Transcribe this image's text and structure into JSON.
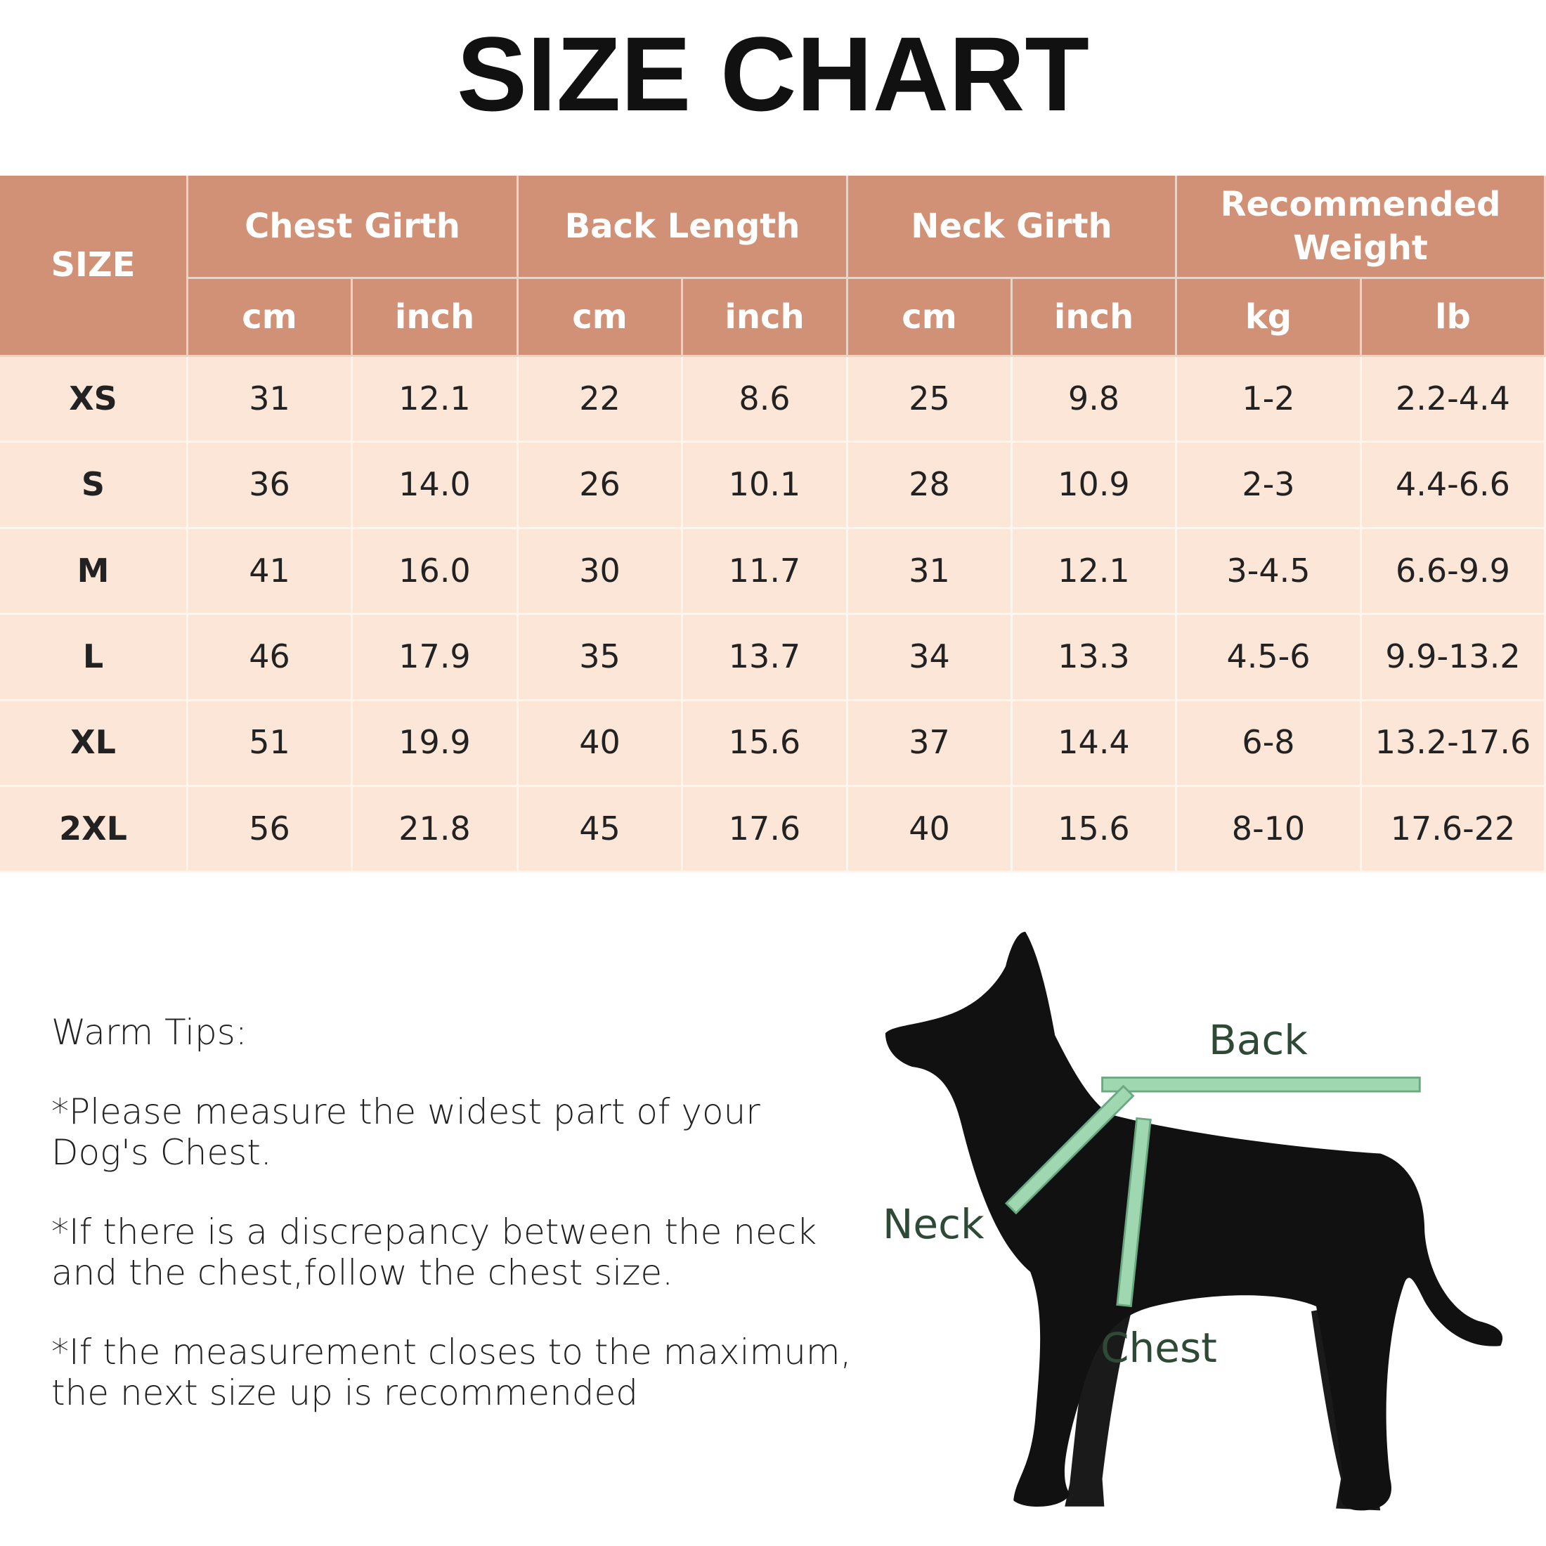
{
  "header": {
    "title": "SIZE CHART"
  },
  "table": {
    "size_header": "SIZE",
    "groups": [
      {
        "label": [
          "Chest Girth"
        ],
        "units": [
          "cm",
          "inch"
        ]
      },
      {
        "label": [
          "Back Length"
        ],
        "units": [
          "cm",
          "inch"
        ]
      },
      {
        "label": [
          "Neck Girth"
        ],
        "units": [
          "cm",
          "inch"
        ]
      },
      {
        "label": [
          "Recommended",
          "Weight"
        ],
        "units": [
          "kg",
          "lb"
        ]
      }
    ],
    "rows": [
      [
        "XS",
        "31",
        "12.1",
        "22",
        "8.6",
        "25",
        "9.8",
        "1-2",
        "2.2-4.4"
      ],
      [
        "S",
        "36",
        "14.0",
        "26",
        "10.1",
        "28",
        "10.9",
        "2-3",
        "4.4-6.6"
      ],
      [
        "M",
        "41",
        "16.0",
        "30",
        "11.7",
        "31",
        "12.1",
        "3-4.5",
        "6.6-9.9"
      ],
      [
        "L",
        "46",
        "17.9",
        "35",
        "13.7",
        "34",
        "13.3",
        "4.5-6",
        "9.9-13.2"
      ],
      [
        "XL",
        "51",
        "19.9",
        "40",
        "15.6",
        "37",
        "14.4",
        "6-8",
        "13.2-17.6"
      ],
      [
        "2XL",
        "56",
        "21.8",
        "45",
        "17.6",
        "40",
        "15.6",
        "8-10",
        "17.6-22"
      ]
    ]
  },
  "tips": {
    "heading": "Warm Tips:",
    "items": [
      {
        "lines": [
          "*Please measure the widest part of your",
          "Dog's Chest."
        ]
      },
      {
        "lines": [
          "*If there is a discrepancy between the neck",
          "and the chest,follow the chest size."
        ]
      },
      {
        "lines": [
          "*If the measurement closes to the maximum,",
          "the next size up is recommended"
        ]
      }
    ]
  },
  "diagram": {
    "labels": {
      "back": "Back",
      "neck": "Neck",
      "chest": "Chest"
    }
  }
}
